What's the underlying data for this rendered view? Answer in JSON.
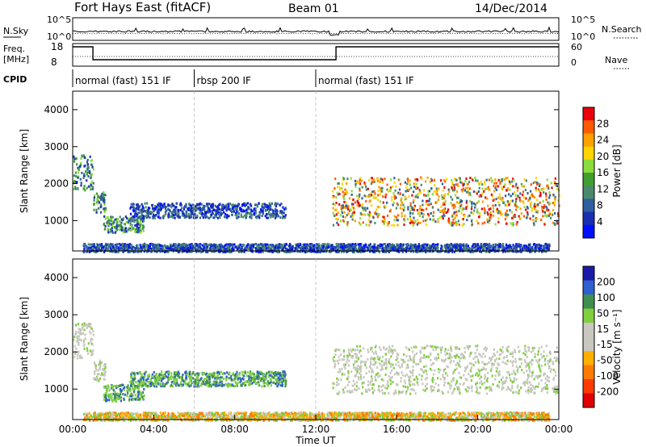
{
  "header": {
    "title": "Fort Hays East (fitACF)",
    "beam": "Beam 01",
    "date": "14/Dec/2014"
  },
  "noise_panel": {
    "left_label": "N.Sky",
    "right_label": "N.Search",
    "left_ticks": [
      "10^5",
      "10^0"
    ],
    "right_ticks": [
      "10^5",
      "10^0"
    ]
  },
  "freq_panel": {
    "left_label_line1": "Freq.",
    "left_label_line2": "[MHz]",
    "left_ticks": [
      "18",
      "8"
    ],
    "right_label": "Nave",
    "right_ticks": [
      "60",
      "0"
    ]
  },
  "cpid": {
    "label": "CPID",
    "segments": [
      {
        "name": "normal (fast) 151 IF",
        "start_hour": 0,
        "end_hour": 6
      },
      {
        "name": "rbsp 200 IF",
        "start_hour": 6,
        "end_hour": 12
      },
      {
        "name": "normal (fast) 151 IF",
        "start_hour": 12,
        "end_hour": 24
      }
    ]
  },
  "power_colorbar": {
    "label": "Power [dB]",
    "ticks": [
      "28",
      "24",
      "20",
      "16",
      "12",
      "8",
      "4"
    ],
    "colors": [
      "#e8000b",
      "#ff5a00",
      "#ff9f00",
      "#ffd400",
      "#8bdc3c",
      "#3f9f2f",
      "#4a8a6c",
      "#2f5f9f",
      "#1a2fb0",
      "#0010ff"
    ]
  },
  "velocity_colorbar": {
    "label": "Velocity [m s⁻¹]",
    "ticks": [
      "200",
      "100",
      "50",
      "15",
      "-15",
      "-50",
      "-100",
      "-200"
    ],
    "colors": [
      "#1a1aa8",
      "#2f5fd0",
      "#3f8f4f",
      "#7fcf3f",
      "#c8c8c0",
      "#c8c8c0",
      "#ffb000",
      "#ff7a00",
      "#ff3a00",
      "#e00000"
    ]
  },
  "chart_data": [
    {
      "type": "heatmap",
      "panel": "power",
      "ylabel": "Slant Range [km]",
      "xlabel": "",
      "ylim": [
        180,
        4500
      ],
      "xlim": [
        0,
        24
      ],
      "y_ticks": [
        "1000",
        "2000",
        "3000",
        "4000"
      ],
      "echo_regions": [
        {
          "t0": 0.0,
          "t1": 1.0,
          "r0": 1850,
          "r1": 2800,
          "level": "mid"
        },
        {
          "t0": 1.0,
          "t1": 1.6,
          "r0": 1250,
          "r1": 1800,
          "level": "mid"
        },
        {
          "t0": 1.5,
          "t1": 3.5,
          "r0": 700,
          "r1": 1150,
          "level": "mid"
        },
        {
          "t0": 2.8,
          "t1": 10.5,
          "r0": 1100,
          "r1": 1500,
          "level": "low"
        },
        {
          "t0": 0.5,
          "t1": 23.5,
          "r0": 180,
          "r1": 400,
          "level": "low"
        },
        {
          "t0": 12.8,
          "t1": 24.0,
          "r0": 900,
          "r1": 2200,
          "level": "high"
        }
      ]
    },
    {
      "type": "heatmap",
      "panel": "velocity",
      "ylabel": "Slant Range [km]",
      "xlabel": "Time UT",
      "ylim": [
        180,
        4500
      ],
      "xlim": [
        0,
        24
      ],
      "y_ticks": [
        "1000",
        "2000",
        "3000",
        "4000"
      ],
      "x_ticks": [
        "00:00",
        "04:00",
        "08:00",
        "12:00",
        "16:00",
        "20:00",
        "00:00"
      ],
      "echo_regions": [
        {
          "t0": 0.0,
          "t1": 1.0,
          "r0": 1850,
          "r1": 2800,
          "level": "zero"
        },
        {
          "t0": 1.0,
          "t1": 1.6,
          "r0": 1250,
          "r1": 1800,
          "level": "zero"
        },
        {
          "t0": 1.5,
          "t1": 3.5,
          "r0": 700,
          "r1": 1150,
          "level": "pos"
        },
        {
          "t0": 2.8,
          "t1": 10.5,
          "r0": 1100,
          "r1": 1500,
          "level": "pos"
        },
        {
          "t0": 0.5,
          "t1": 23.5,
          "r0": 180,
          "r1": 400,
          "level": "neg"
        },
        {
          "t0": 12.8,
          "t1": 24.0,
          "r0": 900,
          "r1": 2200,
          "level": "zero"
        }
      ]
    }
  ]
}
